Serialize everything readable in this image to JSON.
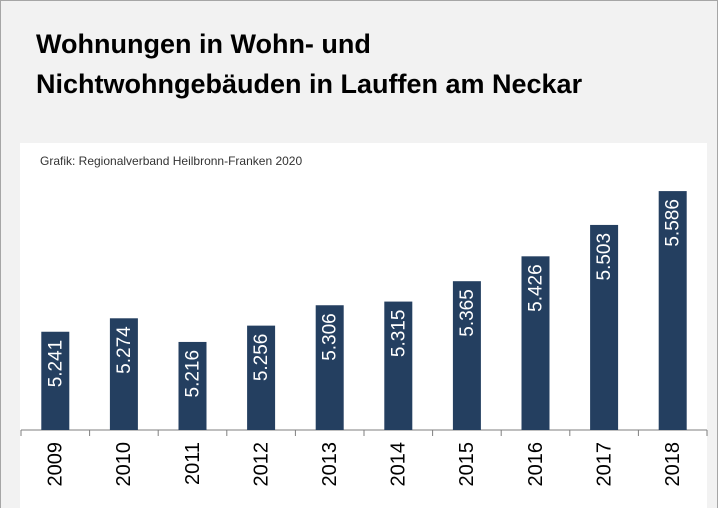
{
  "chart_data": {
    "type": "bar",
    "title": [
      "Wohnungen in Wohn- und",
      "Nichtwohngebäuden in Lauffen am Neckar"
    ],
    "subtitle": "Grafik: Regionalverband Heilbronn-Franken 2020",
    "categories": [
      "2009",
      "2010",
      "2011",
      "2012",
      "2013",
      "2014",
      "2015",
      "2016",
      "2017",
      "2018"
    ],
    "values": [
      5241,
      5274,
      5216,
      5256,
      5306,
      5315,
      5365,
      5426,
      5503,
      5586
    ],
    "value_labels": [
      "5.241",
      "5.274",
      "5.216",
      "5.256",
      "5.306",
      "5.315",
      "5.365",
      "5.426",
      "5.503",
      "5.586"
    ],
    "color": "#243f60",
    "ylim": [
      5000,
      5650
    ]
  }
}
